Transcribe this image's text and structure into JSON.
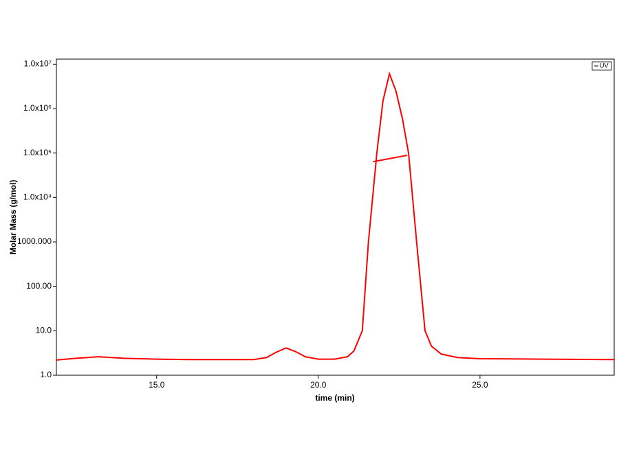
{
  "chart_data": {
    "type": "line",
    "x_label": "time (min)",
    "y_label": "Molar Mass (g/mol)",
    "log_y": true,
    "legend": "upper right",
    "xlim": [
      11.9,
      29.15
    ],
    "xticks": [
      {
        "value": 15,
        "label": "15.0"
      },
      {
        "value": 20,
        "label": "20.0"
      },
      {
        "value": 25,
        "label": "25.0"
      }
    ],
    "ylim": [
      1,
      13000000
    ],
    "yticks": [
      {
        "value": 1,
        "label": "1.0"
      },
      {
        "value": 10,
        "label": "10.0"
      },
      {
        "value": 100,
        "label": "100.00"
      },
      {
        "value": 1000,
        "label": "1000.000"
      },
      {
        "value": 10000,
        "label": "1.0x10⁴"
      },
      {
        "value": 100000,
        "label": "1.0x10⁵"
      },
      {
        "value": 1000000,
        "label": "1.0x10⁶"
      },
      {
        "value": 10000000,
        "label": "1.0x10⁷"
      }
    ],
    "series": [
      {
        "name": "UV",
        "color": "#ff0000",
        "x": [
          11.9,
          12.5,
          13.2,
          14.0,
          15.0,
          16.0,
          17.0,
          18.0,
          18.4,
          18.7,
          19.0,
          19.3,
          19.6,
          20.0,
          20.5,
          20.9,
          21.1,
          21.36,
          21.55,
          21.81,
          22.0,
          22.2,
          22.4,
          22.6,
          22.79,
          23.04,
          23.3,
          23.5,
          23.8,
          24.3,
          25.0,
          27.0,
          29.15
        ],
        "values": [
          2.2,
          2.4,
          2.6,
          2.4,
          2.3,
          2.25,
          2.25,
          2.25,
          2.5,
          3.3,
          4.1,
          3.4,
          2.6,
          2.3,
          2.3,
          2.6,
          3.5,
          10,
          1000,
          100000,
          1500000,
          6100000,
          2500000,
          600000,
          100000,
          1000,
          10,
          4.5,
          3,
          2.5,
          2.35,
          2.3,
          2.25
        ]
      },
      {
        "color": "#ff0000",
        "x": [
          21.7,
          22.75
        ],
        "values": [
          64000,
          89000
        ]
      }
    ]
  }
}
